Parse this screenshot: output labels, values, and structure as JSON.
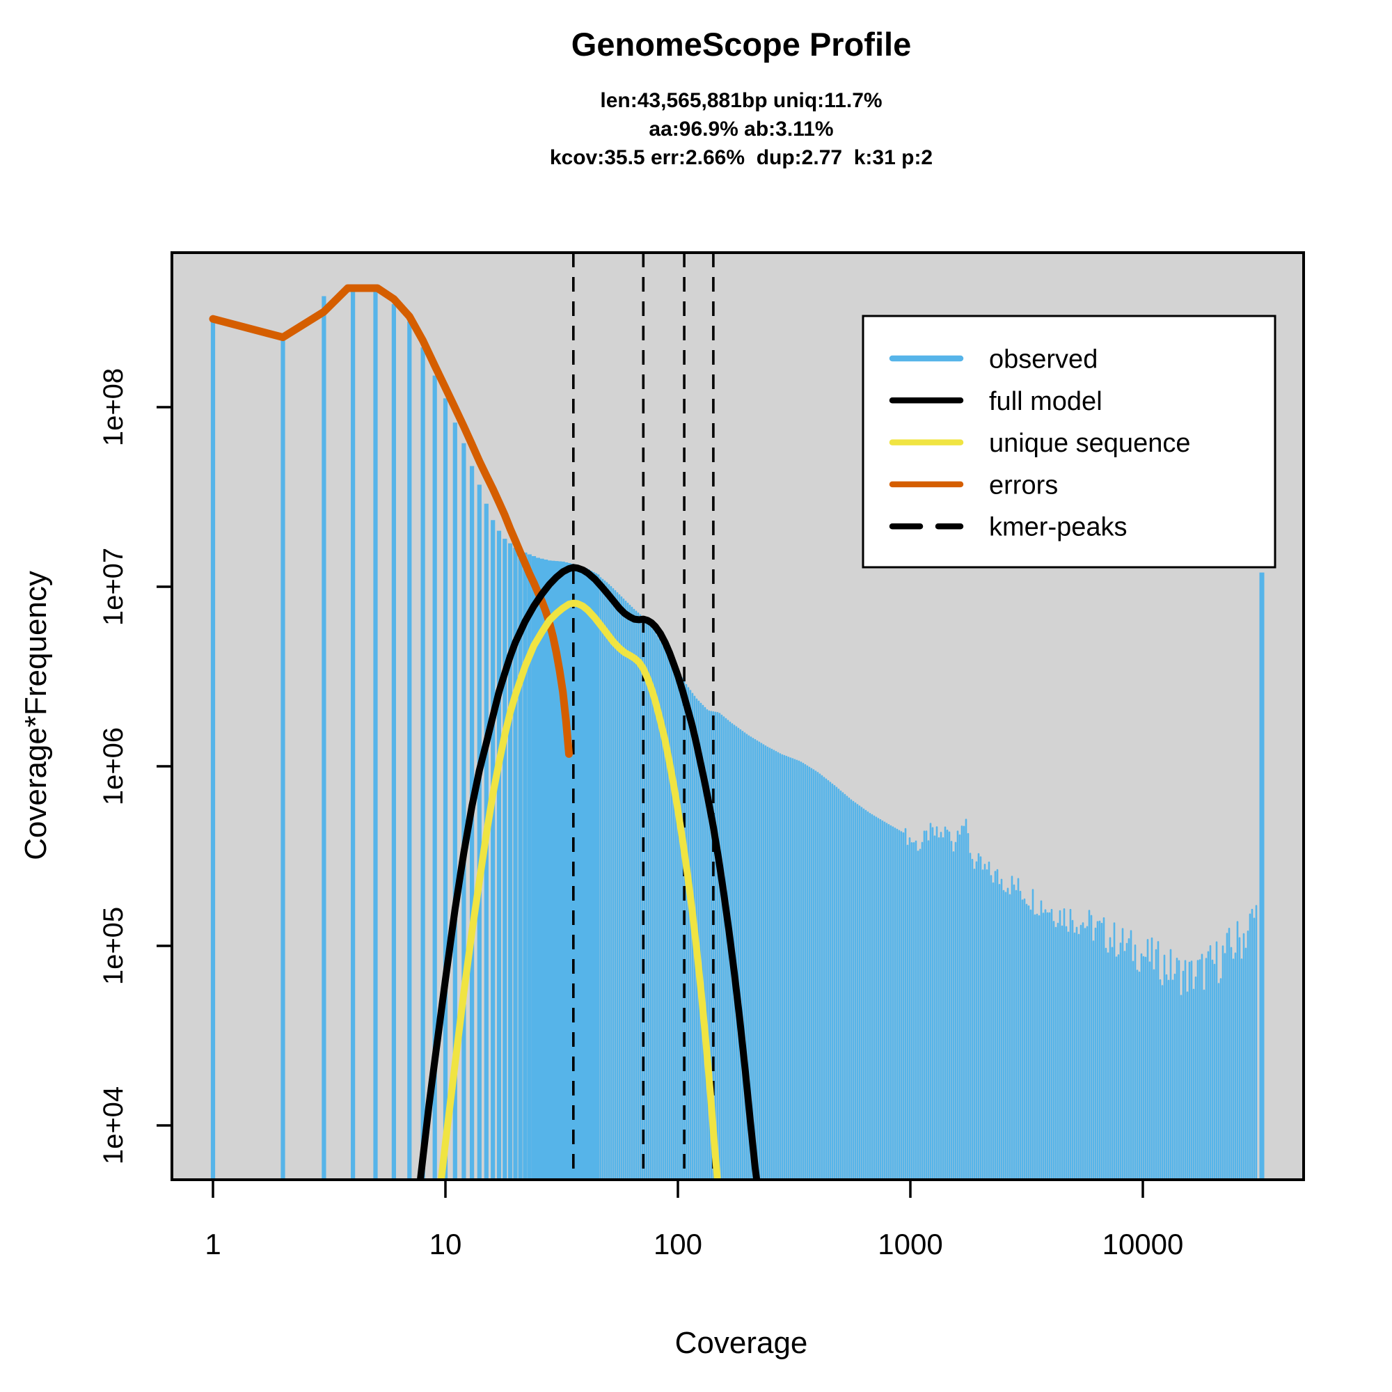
{
  "title": "GenomeScope Profile",
  "stats": {
    "line1": "len:43,565,881bp uniq:11.7%",
    "line2": "aa:96.9% ab:3.11%",
    "line3": "kcov:35.5 err:2.66%  dup:2.77  k:31 p:2"
  },
  "axes": {
    "x_label": "Coverage",
    "y_label": "Coverage*Frequency",
    "x_ticks": [
      {
        "label": "1",
        "value": 1
      },
      {
        "label": "10",
        "value": 10
      },
      {
        "label": "100",
        "value": 100
      },
      {
        "label": "1000",
        "value": 1000
      },
      {
        "label": "10000",
        "value": 10000
      }
    ],
    "y_ticks": [
      {
        "label": "1e+04",
        "value": 10000.0
      },
      {
        "label": "1e+05",
        "value": 100000.0
      },
      {
        "label": "1e+06",
        "value": 1000000.0
      },
      {
        "label": "1e+07",
        "value": 10000000.0
      },
      {
        "label": "1e+08",
        "value": 100000000.0
      }
    ]
  },
  "colors": {
    "observed": "#56B4E9",
    "full_model": "#000000",
    "unique_sequence": "#F0E442",
    "errors": "#D55E00",
    "kmer_peaks": "#000000",
    "plot_bg": "#D3D3D3",
    "legend_bg": "#FFFFFF"
  },
  "legend": {
    "items": [
      {
        "label": "observed",
        "color": "#56B4E9",
        "dashed": false
      },
      {
        "label": "full model",
        "color": "#000000",
        "dashed": false
      },
      {
        "label": "unique sequence",
        "color": "#F0E442",
        "dashed": false
      },
      {
        "label": "errors",
        "color": "#D55E00",
        "dashed": false
      },
      {
        "label": "kmer-peaks",
        "color": "#000000",
        "dashed": true
      }
    ]
  },
  "chart_data": {
    "type": "bar",
    "title": "GenomeScope Profile",
    "xlabel": "Coverage",
    "ylabel": "Coverage*Frequency",
    "x_scale": "log",
    "y_scale": "log",
    "xlim": [
      0.66,
      49000
    ],
    "ylim": [
      5000,
      725000000
    ],
    "grid": false,
    "legend_position": "upper right",
    "kmer_peaks": [
      35.5,
      71,
      106.5,
      142
    ],
    "observed_envelope": [
      [
        1,
        305000000.0
      ],
      [
        2,
        235000000.0
      ],
      [
        3,
        415000000.0
      ],
      [
        4,
        445000000.0
      ],
      [
        5,
        440000000.0
      ],
      [
        6,
        375000000.0
      ],
      [
        7,
        300000000.0
      ],
      [
        8,
        215000000.0
      ],
      [
        9,
        150000000.0
      ],
      [
        10,
        112000000.0
      ],
      [
        11,
        82000000.0
      ],
      [
        12,
        63000000.0
      ],
      [
        13,
        47000000.0
      ],
      [
        14,
        37000000.0
      ],
      [
        15,
        29000000.0
      ],
      [
        16,
        23500000.0
      ],
      [
        17,
        20500000.0
      ],
      [
        18,
        18500000.0
      ],
      [
        20,
        16500000.0
      ],
      [
        22,
        15500000.0
      ],
      [
        25,
        14500000.0
      ],
      [
        28,
        14000000.0
      ],
      [
        32,
        13800000.0
      ],
      [
        36,
        13300000.0
      ],
      [
        40,
        12700000.0
      ],
      [
        45,
        11700000.0
      ],
      [
        50,
        10500000.0
      ],
      [
        55,
        9300000.0
      ],
      [
        60,
        8300000.0
      ],
      [
        65,
        7500000.0
      ],
      [
        70,
        6900000.0
      ],
      [
        75,
        6300000.0
      ],
      [
        80,
        5600000.0
      ],
      [
        90,
        4300000.0
      ],
      [
        100,
        3400000.0
      ],
      [
        110,
        2800000.0
      ],
      [
        120,
        2400000.0
      ],
      [
        135,
        2050000.0
      ],
      [
        150,
        2000000.0
      ],
      [
        170,
        1750000.0
      ],
      [
        200,
        1500000.0
      ],
      [
        240,
        1300000.0
      ],
      [
        280,
        1170000.0
      ],
      [
        336,
        1070000.0
      ],
      [
        400,
        930000.0
      ],
      [
        475,
        780000.0
      ],
      [
        560,
        650000.0
      ],
      [
        670,
        550000.0
      ],
      [
        800,
        480000.0
      ],
      [
        945,
        425000.0
      ],
      [
        1100,
        370000.0
      ],
      [
        1210,
        440000.0
      ],
      [
        1330,
        420000.0
      ],
      [
        1440,
        450000.0
      ],
      [
        1540,
        380000.0
      ],
      [
        1660,
        540000.0
      ],
      [
        1750,
        440000.0
      ],
      [
        1860,
        310000.0
      ],
      [
        2100,
        270000.0
      ],
      [
        2700,
        230000.0
      ],
      [
        3500,
        185000.0
      ],
      [
        4300,
        160000.0
      ],
      [
        5400,
        145000.0
      ],
      [
        7500,
        115000.0
      ],
      [
        9500,
        98000.0
      ],
      [
        12000,
        85000.0
      ],
      [
        14000,
        76000.0
      ],
      [
        16000,
        72000.0
      ],
      [
        18000,
        77000.0
      ],
      [
        20000,
        84000.0
      ],
      [
        23000,
        98000.0
      ],
      [
        26000,
        115000.0
      ],
      [
        29000,
        140000.0
      ],
      [
        31500,
        170000.0
      ],
      [
        33000,
        190000.0
      ]
    ],
    "end_spike": {
      "coverage": 32500,
      "value": 12000000.0
    },
    "series": [
      {
        "name": "errors",
        "color": "#D55E00",
        "points": [
          [
            1,
            310000000.0
          ],
          [
            2,
            245000000.0
          ],
          [
            3,
            340000000.0
          ],
          [
            3.8,
            460000000.0
          ],
          [
            5.1,
            460000000.0
          ],
          [
            6,
            400000000.0
          ],
          [
            7,
            320000000.0
          ],
          [
            8,
            235000000.0
          ],
          [
            9,
            170000000.0
          ],
          [
            10,
            128000000.0
          ],
          [
            11,
            99000000.0
          ],
          [
            12,
            78000000.0
          ],
          [
            13,
            62000000.0
          ],
          [
            14,
            50000000.0
          ],
          [
            15,
            41500000.0
          ],
          [
            16,
            35000000.0
          ],
          [
            17,
            29500000.0
          ],
          [
            18,
            25000000.0
          ],
          [
            19,
            21000000.0
          ],
          [
            20,
            18000000.0
          ],
          [
            21,
            15500000.0
          ],
          [
            22,
            13500000.0
          ],
          [
            23,
            11800000.0
          ],
          [
            24,
            10500000.0
          ],
          [
            25,
            9300000.0
          ],
          [
            26,
            8300000.0
          ],
          [
            27,
            7300000.0
          ],
          [
            28,
            6300000.0
          ],
          [
            29,
            5300000.0
          ],
          [
            30,
            4300000.0
          ],
          [
            31,
            3400000.0
          ],
          [
            32,
            2600000.0
          ],
          [
            33,
            1800000.0
          ],
          [
            34,
            1170000.0
          ]
        ]
      },
      {
        "name": "full model",
        "color": "#000000",
        "points": [
          [
            7.8,
            5000.0
          ],
          [
            8.5,
            13000.0
          ],
          [
            9,
            23000.0
          ],
          [
            10,
            65000.0
          ],
          [
            11,
            160000.0
          ],
          [
            12,
            330000.0
          ],
          [
            13,
            600000.0
          ],
          [
            14,
            950000.0
          ],
          [
            15,
            1350000.0
          ],
          [
            16,
            1900000.0
          ],
          [
            17,
            2600000.0
          ],
          [
            18,
            3300000.0
          ],
          [
            19,
            4100000.0
          ],
          [
            20,
            4900000.0
          ],
          [
            22,
            6400000.0
          ],
          [
            24,
            7800000.0
          ],
          [
            26,
            9100000.0
          ],
          [
            28,
            10300000.0
          ],
          [
            30,
            11300000.0
          ],
          [
            32,
            12100000.0
          ],
          [
            34,
            12600000.0
          ],
          [
            35.5,
            12800000.0
          ],
          [
            37,
            12700000.0
          ],
          [
            39,
            12400000.0
          ],
          [
            41,
            11900000.0
          ],
          [
            44,
            11000000.0
          ],
          [
            47,
            10000000.0
          ],
          [
            50,
            9100000.0
          ],
          [
            53,
            8300000.0
          ],
          [
            56,
            7600000.0
          ],
          [
            59,
            7100000.0
          ],
          [
            62,
            6800000.0
          ],
          [
            65,
            6600000.0
          ],
          [
            68,
            6550000.0
          ],
          [
            71,
            6600000.0
          ],
          [
            74,
            6500000.0
          ],
          [
            77,
            6300000.0
          ],
          [
            80,
            6000000.0
          ],
          [
            84,
            5500000.0
          ],
          [
            88,
            4900000.0
          ],
          [
            92,
            4300000.0
          ],
          [
            96,
            3700000.0
          ],
          [
            100,
            3200000.0
          ],
          [
            105,
            2600000.0
          ],
          [
            110,
            2100000.0
          ],
          [
            115,
            1700000.0
          ],
          [
            120,
            1350000.0
          ],
          [
            125,
            1050000.0
          ],
          [
            130,
            830000.0
          ],
          [
            136,
            620000.0
          ],
          [
            142,
            460000.0
          ],
          [
            150,
            300000.0
          ],
          [
            158,
            190000.0
          ],
          [
            166,
            120000.0
          ],
          [
            175,
            70000.0
          ],
          [
            185,
            38000.0
          ],
          [
            195,
            20000.0
          ],
          [
            205,
            10500.0
          ],
          [
            215,
            5800.0
          ],
          [
            222,
            4200.0
          ]
        ]
      },
      {
        "name": "unique sequence",
        "color": "#F0E442",
        "points": [
          [
            9.5,
            4500.0
          ],
          [
            10,
            8000.0
          ],
          [
            11,
            22000.0
          ],
          [
            12,
            55000.0
          ],
          [
            13,
            120000.0
          ],
          [
            14,
            230000.0
          ],
          [
            15,
            420000.0
          ],
          [
            16,
            700000.0
          ],
          [
            17,
            1050000.0
          ],
          [
            18,
            1500000.0
          ],
          [
            19,
            2000000.0
          ],
          [
            20,
            2500000.0
          ],
          [
            22,
            3600000.0
          ],
          [
            24,
            4700000.0
          ],
          [
            26,
            5600000.0
          ],
          [
            28,
            6500000.0
          ],
          [
            30,
            7100000.0
          ],
          [
            32,
            7600000.0
          ],
          [
            34,
            8000000.0
          ],
          [
            35.5,
            8100000.0
          ],
          [
            37,
            8050000.0
          ],
          [
            39,
            7800000.0
          ],
          [
            41,
            7400000.0
          ],
          [
            44,
            6700000.0
          ],
          [
            47,
            6000000.0
          ],
          [
            50,
            5400000.0
          ],
          [
            53,
            4900000.0
          ],
          [
            56,
            4550000.0
          ],
          [
            59,
            4300000.0
          ],
          [
            62,
            4150000.0
          ],
          [
            65,
            4000000.0
          ],
          [
            68,
            3800000.0
          ],
          [
            71,
            3500000.0
          ],
          [
            74,
            3100000.0
          ],
          [
            77,
            2700000.0
          ],
          [
            80,
            2300000.0
          ],
          [
            84,
            1800000.0
          ],
          [
            88,
            1400000.0
          ],
          [
            92,
            1050000.0
          ],
          [
            96,
            780000.0
          ],
          [
            100,
            570000.0
          ],
          [
            105,
            380000.0
          ],
          [
            110,
            250000.0
          ],
          [
            115,
            160000.0
          ],
          [
            120,
            100000.0
          ],
          [
            126,
            55000.0
          ],
          [
            132,
            29000.0
          ],
          [
            138,
            15000.0
          ],
          [
            144,
            7500.0
          ],
          [
            149,
            4500.0
          ]
        ]
      }
    ]
  }
}
